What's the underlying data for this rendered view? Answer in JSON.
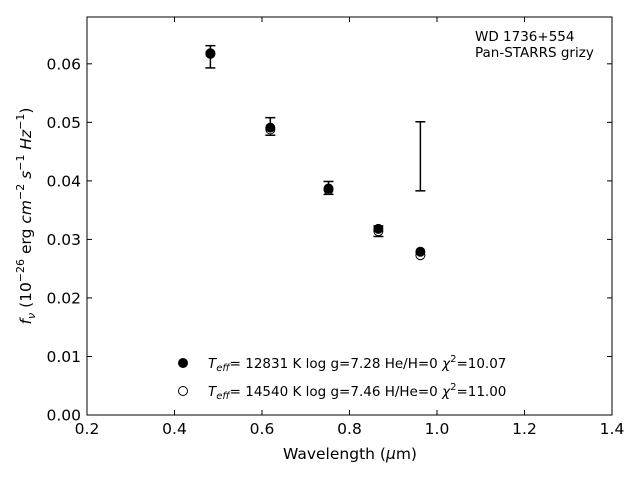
{
  "chart_data": {
    "type": "scatter",
    "title": "",
    "xlabel": "Wavelength (μm)",
    "ylabel": "fν (10⁻²⁶ erg cm⁻² s⁻¹ Hz⁻¹)",
    "xlim": [
      0.2,
      1.4
    ],
    "ylim": [
      0.0,
      0.068
    ],
    "xticks": [
      "0.2",
      "0.4",
      "0.6",
      "0.8",
      "1.0",
      "1.2",
      "1.4"
    ],
    "yticks": [
      "0.00",
      "0.01",
      "0.02",
      "0.03",
      "0.04",
      "0.05",
      "0.06"
    ],
    "annotation": [
      "WD 1736+554",
      "Pan-STARRS grizy"
    ],
    "observed": {
      "x": [
        0.482,
        0.619,
        0.752,
        0.866,
        0.962
      ],
      "y": [
        0.0612,
        0.0493,
        0.0388,
        0.0314,
        0.0442
      ],
      "err": [
        0.0019,
        0.0015,
        0.0011,
        0.0009,
        0.0059
      ]
    },
    "series": [
      {
        "name": "Teff= 12831 K  log g=7.28  He/H=0  χ²=10.07",
        "legend_label": {
          "teff": "T",
          "teff_sub": "eff",
          "rest": "= 12831 K  log g=7.28  He/H=0  ",
          "chi": "χ",
          "chi_sup": "2",
          "chi_val": "=10.07"
        },
        "marker": "filled-circle",
        "x": [
          0.482,
          0.619,
          0.752,
          0.866,
          0.962
        ],
        "y": [
          0.0618,
          0.0491,
          0.0387,
          0.0318,
          0.0279
        ]
      },
      {
        "name": "Teff= 14540 K  log g=7.46  H/He=0  χ²=11.00",
        "legend_label": {
          "teff": "T",
          "teff_sub": "eff",
          "rest": "= 14540 K  log g=7.46  H/He=0  ",
          "chi": "χ",
          "chi_sup": "2",
          "chi_val": "=11.00"
        },
        "marker": "open-circle",
        "x": [
          0.482,
          0.619,
          0.752,
          0.866,
          0.962
        ],
        "y": [
          0.0617,
          0.0488,
          0.0385,
          0.0314,
          0.0273
        ]
      }
    ],
    "colors": {
      "ink": "#000000",
      "background": "#ffffff"
    }
  }
}
